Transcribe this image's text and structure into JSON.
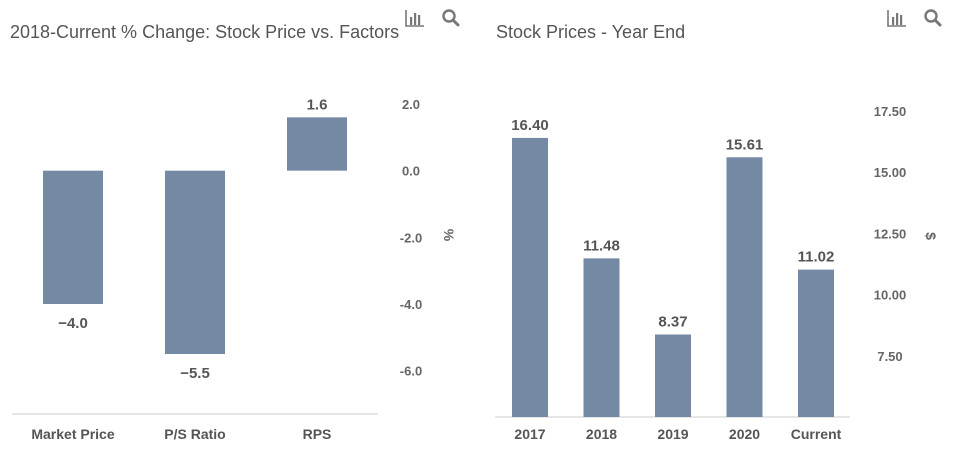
{
  "colors": {
    "bar": "#7489a4",
    "axis_line": "#cccccc",
    "icon": "#777777"
  },
  "icons": [
    "bar-chart-icon",
    "search-icon"
  ],
  "chart_data": [
    {
      "type": "bar",
      "title": "2018-Current % Change: Stock Price vs. Factors",
      "categories": [
        "Market Price",
        "P/S Ratio",
        "RPS"
      ],
      "values": [
        -4.0,
        -5.5,
        1.6
      ],
      "data_labels": [
        "−4.0",
        "−5.5",
        "1.6"
      ],
      "ylabel": "%",
      "ylim": [
        -7.3,
        2.0
      ],
      "yticks": [
        2.0,
        0.0,
        -2.0,
        -4.0,
        -6.0
      ],
      "ytick_labels": [
        "2.0",
        "0.0",
        "-2.0",
        "-4.0",
        "-6.0"
      ],
      "yaxis_side": "right",
      "grid": false
    },
    {
      "type": "bar",
      "title": "Stock Prices - Year End",
      "categories": [
        "2017",
        "2018",
        "2019",
        "2020",
        "Current"
      ],
      "values": [
        16.4,
        11.48,
        8.37,
        15.61,
        11.02
      ],
      "data_labels": [
        "16.40",
        "11.48",
        "8.37",
        "15.61",
        "11.02"
      ],
      "ylabel": "$",
      "ylim": [
        5.0,
        17.5
      ],
      "yticks": [
        17.5,
        15.0,
        12.5,
        10.0,
        7.5
      ],
      "ytick_labels": [
        "17.50",
        "15.00",
        "12.50",
        "10.00",
        "7.50"
      ],
      "yaxis_side": "right",
      "grid": false
    }
  ]
}
